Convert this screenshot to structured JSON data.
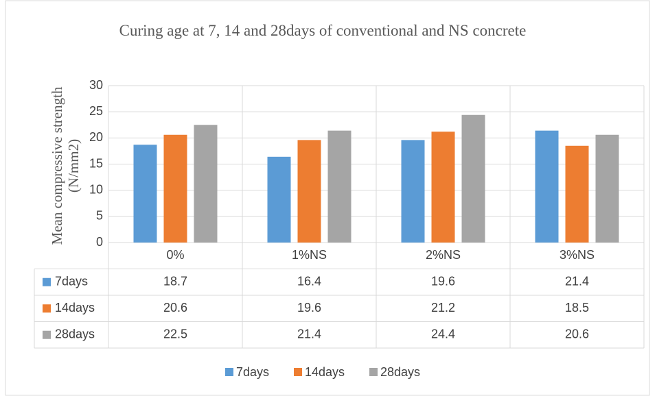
{
  "chart_data": {
    "type": "bar",
    "title": "Curing age at 7, 14 and 28days of conventional and NS concrete",
    "y_label": "Mean compressive strength (N/mm2)",
    "categories": [
      "0%",
      "1%NS",
      "2%NS",
      "3%NS"
    ],
    "series": [
      {
        "name": "7days",
        "color": "#5b9bd5",
        "values": [
          18.7,
          16.4,
          19.6,
          21.4
        ]
      },
      {
        "name": "14days",
        "color": "#ed7d31",
        "values": [
          20.6,
          19.6,
          21.2,
          18.5
        ]
      },
      {
        "name": "28days",
        "color": "#a5a5a5",
        "values": [
          22.5,
          21.4,
          24.4,
          20.6
        ]
      }
    ],
    "ylim": [
      0,
      30
    ],
    "yticks": [
      0,
      5,
      10,
      15,
      20,
      25,
      30
    ],
    "grid": true,
    "data_table": true,
    "legend": "bottom"
  }
}
